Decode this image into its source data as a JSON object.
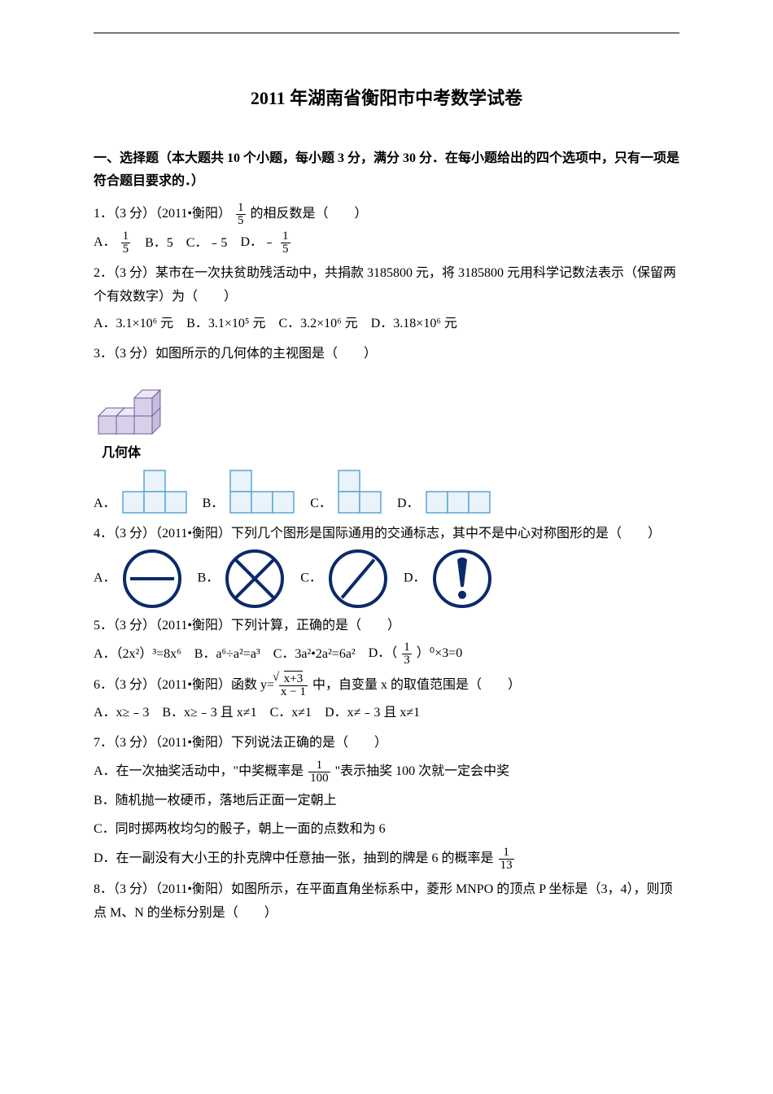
{
  "title": "2011 年湖南省衡阳市中考数学试卷",
  "section_heading": "一、选择题（本大题共 10 个小题，每小题 3 分，满分 30 分．在每小题给出的四个选项中，只有一项是符合题目要求的．）",
  "questions": {
    "q1": {
      "stem_pre": "1．（3 分）（2011•衡阳）",
      "frac_num": "1",
      "frac_den": "5",
      "stem_post": "的相反数是（　　）",
      "A_pre": "A．",
      "A_num": "1",
      "A_den": "5",
      "B": "B．5",
      "C": "C．﹣5",
      "D_pre": "D．﹣",
      "D_num": "1",
      "D_den": "5"
    },
    "q2": {
      "stem": "2．（3 分）某市在一次扶贫助残活动中，共捐款 3185800 元，将 3185800 元用科学记数法表示（保留两个有效数字）为（　　）",
      "A": "A．3.1×10⁶ 元",
      "B": "B．3.1×10⁵ 元",
      "C": "C．3.2×10⁶ 元",
      "D": "D．3.18×10⁶ 元"
    },
    "q3": {
      "stem": "3．（3 分）如图所示的几何体的主视图是（　　）",
      "solid_label": "几何体",
      "A": "A．",
      "B": "B．",
      "C": "C．",
      "D": "D．",
      "solid": {
        "cell": 22,
        "face_fill": "#d9cfe8",
        "top_fill": "#ede8f4",
        "side_fill": "#c7bcdc",
        "stroke": "#6b5ca3"
      },
      "views": {
        "cell": 26,
        "stroke": "#5aa5d6",
        "fill": "#eaf3fa"
      }
    },
    "q4": {
      "stem": "4．（3 分）（2011•衡阳）下列几个图形是国际通用的交通标志，其中不是中心对称图形的是（　　）",
      "A": "A．",
      "B": "B．",
      "C": "C．",
      "D": "D．",
      "sign": {
        "size": 72,
        "stroke": "#0b2a6b",
        "stroke_w": 4,
        "fill": "#ffffff",
        "bang_outer": "#0b2a6b",
        "bang_inner": "#0b2a6b"
      }
    },
    "q5": {
      "stem": "5．（3 分）（2011•衡阳）下列计算，正确的是（　　）",
      "A": "A．（2x²）³=8x⁶",
      "B": "B．a⁶÷a²=a³",
      "C": "C．3a²•2a²=6a²",
      "D_pre": "D．（",
      "D_num": "1",
      "D_den": "3",
      "D_post": "）⁰×3=0"
    },
    "q6": {
      "stem_pre": "6．（3 分）（2011•衡阳）函数 y=",
      "top": "√(x+3)",
      "bot": "x − 1",
      "stem_post": "中，自变量 x 的取值范围是（　　）",
      "A": "A．x≥﹣3",
      "B": "B．x≥﹣3 且 x≠1",
      "C": "C．x≠1",
      "D": "D．x≠﹣3 且 x≠1"
    },
    "q7": {
      "stem": "7．（3 分）（2011•衡阳）下列说法正确的是（　　）",
      "A_pre": "A．在一次抽奖活动中，\"中奖概率是",
      "A_num": "1",
      "A_den": "100",
      "A_post": "\"表示抽奖 100 次就一定会中奖",
      "B": "B．随机抛一枚硬币，落地后正面一定朝上",
      "C": "C．同时掷两枚均匀的骰子，朝上一面的点数和为 6",
      "D_pre": "D．在一副没有大小王的扑克牌中任意抽一张，抽到的牌是 6 的概率是",
      "D_num": "1",
      "D_den": "13"
    },
    "q8": {
      "stem": "8．（3 分）（2011•衡阳）如图所示，在平面直角坐标系中，菱形 MNPO 的顶点 P 坐标是（3，4），则顶点 M、N 的坐标分别是（　　）"
    }
  }
}
